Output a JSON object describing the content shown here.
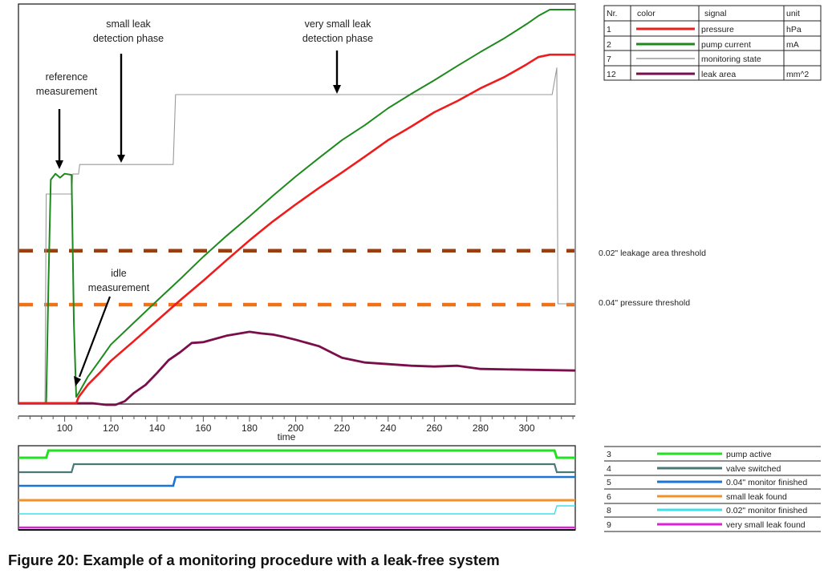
{
  "caption": "Figure 20: Example of a monitoring procedure with a leak-free system",
  "chart_data": [
    {
      "type": "line",
      "title": "",
      "xlabel": "time",
      "ylabel": "",
      "xlim": [
        80,
        321
      ],
      "ylim": [
        0,
        100
      ],
      "x_ticks": [
        100,
        120,
        140,
        160,
        180,
        200,
        220,
        240,
        260,
        280,
        300
      ],
      "x_minor_step": 5,
      "grid": false,
      "annotations": [
        {
          "text": [
            "small leak",
            "detection phase"
          ],
          "points_to": {
            "x": 127,
            "y": 60
          }
        },
        {
          "text": [
            "very small leak",
            "detection phase"
          ],
          "points_to": {
            "x": 220,
            "y": 77
          }
        },
        {
          "text": [
            "reference",
            "measurement"
          ],
          "points_to": {
            "x": 97,
            "y": 58
          }
        },
        {
          "text": [
            "idle",
            "measurement"
          ],
          "points_to": {
            "x": 104,
            "y": 1
          }
        }
      ],
      "thresholds": [
        {
          "name": "leakage-area-threshold",
          "label": "0.02\" leakage area threshold",
          "value": 38.2,
          "color": "#9c3d0f"
        },
        {
          "name": "pressure-threshold",
          "label": "0.04\" pressure threshold",
          "value": 24.7,
          "color": "#f07218"
        }
      ],
      "series": [
        {
          "nr": "1",
          "name": "pressure",
          "unit": "hPa",
          "color": "#ee1c1c",
          "x": [
            80,
            105,
            106,
            110,
            115,
            120,
            130,
            140,
            150,
            160,
            170,
            180,
            190,
            200,
            210,
            220,
            230,
            240,
            250,
            260,
            270,
            280,
            290,
            300,
            305,
            310,
            321
          ],
          "y": [
            0,
            0,
            1.5,
            4.6,
            7.5,
            10.6,
            15.6,
            20.7,
            25.8,
            30.7,
            35.8,
            40.8,
            45.5,
            49.8,
            53.9,
            57.8,
            61.8,
            65.9,
            69.3,
            72.9,
            75.7,
            78.9,
            81.6,
            84.9,
            86.7,
            87.3,
            87.3
          ]
        },
        {
          "nr": "2",
          "name": "pump current",
          "unit": "mA",
          "color": "#1e8a1e",
          "x": [
            80,
            92,
            93,
            94,
            96,
            98,
            100,
            103,
            104,
            105,
            106,
            110,
            115,
            120,
            130,
            140,
            150,
            160,
            170,
            180,
            190,
            200,
            210,
            220,
            230,
            240,
            250,
            260,
            270,
            280,
            290,
            300,
            305,
            310,
            321
          ],
          "y": [
            0,
            0,
            30,
            56,
            57.5,
            56.5,
            57.5,
            57.2,
            20,
            1.6,
            2.5,
            6.6,
            10.6,
            14.7,
            20.2,
            25.7,
            31.1,
            36.7,
            41.9,
            46.8,
            51.9,
            56.8,
            61.4,
            65.9,
            69.7,
            73.9,
            77.5,
            80.9,
            84.5,
            88.0,
            91.3,
            95.0,
            97.0,
            98.6,
            98.6
          ]
        },
        {
          "nr": "7",
          "name": "monitoring state",
          "unit": "",
          "color": "#9a9a9a",
          "x": [
            80,
            91.5,
            92,
            103,
            103.5,
            106,
            106.5,
            147,
            148,
            311,
            313,
            313.5,
            321
          ],
          "y": [
            0,
            0,
            52.4,
            52.4,
            57.4,
            57.4,
            59.8,
            59.8,
            77.3,
            77.3,
            84.0,
            24.9,
            24.9
          ]
        },
        {
          "nr": "12",
          "name": "leak area",
          "unit": "mm^2",
          "color": "#7a0e4a",
          "x": [
            80,
            112,
            118,
            122,
            126,
            130,
            135,
            140,
            145,
            150,
            155,
            160,
            170,
            180,
            185,
            190,
            195,
            200,
            210,
            220,
            230,
            240,
            250,
            260,
            270,
            280,
            300,
            321
          ],
          "y": [
            0,
            0,
            -0.4,
            -0.4,
            0.5,
            2.6,
            4.6,
            7.6,
            10.8,
            12.8,
            15.1,
            15.3,
            16.9,
            17.9,
            17.5,
            17.2,
            16.6,
            15.9,
            14.3,
            11.4,
            10.2,
            9.8,
            9.4,
            9.2,
            9.4,
            8.6,
            8.4,
            8.2
          ]
        }
      ]
    },
    {
      "type": "line",
      "title": "status signals",
      "xlim": [
        80,
        321
      ],
      "series": [
        {
          "nr": "3",
          "name": "pump active",
          "color": "#22e022",
          "x": [
            80,
            92,
            93,
            312,
            313,
            321
          ],
          "y": [
            0,
            0,
            1,
            1,
            0,
            0
          ]
        },
        {
          "nr": "4",
          "name": "valve switched",
          "color": "#4a7878",
          "x": [
            80,
            103,
            104,
            312,
            313,
            321
          ],
          "y": [
            0,
            0,
            1,
            1,
            0,
            0
          ]
        },
        {
          "nr": "5",
          "name": "0.04\" monitor finished",
          "color": "#1a74d6",
          "x": [
            80,
            147,
            148,
            321
          ],
          "y": [
            0,
            0,
            1,
            1
          ]
        },
        {
          "nr": "6",
          "name": "small leak found",
          "color": "#f39028",
          "x": [
            80,
            321
          ],
          "y": [
            0,
            0
          ]
        },
        {
          "nr": "8",
          "name": "0.02\" monitor finished",
          "color": "#3ee0e8",
          "x": [
            80,
            312,
            313,
            321
          ],
          "y": [
            0,
            0,
            1,
            1
          ]
        },
        {
          "nr": "9",
          "name": "very small leak found",
          "color": "#e020d8",
          "x": [
            80,
            321
          ],
          "y": [
            0,
            0
          ]
        }
      ]
    }
  ],
  "legend_top": {
    "headers": [
      "Nr.",
      "color",
      "signal",
      "unit"
    ],
    "rows": [
      {
        "nr": "1",
        "signal": "pressure",
        "unit": "hPa",
        "color": "#ee1c1c"
      },
      {
        "nr": "2",
        "signal": "pump current",
        "unit": "mA",
        "color": "#1e8a1e"
      },
      {
        "nr": "7",
        "signal": "monitoring state",
        "unit": "",
        "color": "#9a9a9a"
      },
      {
        "nr": "12",
        "signal": "leak area",
        "unit": "mm^2",
        "color": "#7a0e4a"
      }
    ]
  },
  "legend_bottom": {
    "rows": [
      {
        "nr": "3",
        "signal": "pump active",
        "color": "#22e022"
      },
      {
        "nr": "4",
        "signal": "valve switched",
        "color": "#4a7878"
      },
      {
        "nr": "5",
        "signal": "0.04\" monitor finished",
        "color": "#1a74d6"
      },
      {
        "nr": "6",
        "signal": "small leak found",
        "color": "#f39028"
      },
      {
        "nr": "8",
        "signal": "0.02\" monitor finished",
        "color": "#3ee0e8"
      },
      {
        "nr": "9",
        "signal": "very small leak found",
        "color": "#e020d8"
      }
    ]
  }
}
